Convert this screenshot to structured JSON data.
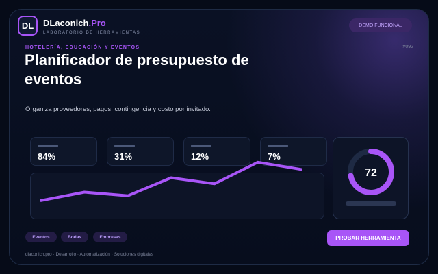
{
  "brand": {
    "logo_text": "DL",
    "name_main": "DLaconich",
    "name_accent": ".Pro",
    "subtitle": "LABORATORIO DE HERRAMIENTAS"
  },
  "header": {
    "badge": "DEMO FUNCIONAL"
  },
  "hero": {
    "category": "HOTELERÍA, EDUCACIÓN Y EVENTOS",
    "tool_id": "#092",
    "title": "Planificador de presupuesto de eventos",
    "description": "Organiza proveedores, pagos, contingencia y costo por invitado."
  },
  "stats": [
    "84%",
    "31%",
    "12%",
    "7%"
  ],
  "chart_data": {
    "type": "line",
    "values": [
      1.5,
      5.0,
      3.5,
      11.0,
      8.5,
      17.5,
      14.5
    ],
    "ylim": [
      0,
      20
    ],
    "color": "#a855f7",
    "grid": false,
    "legend": "none"
  },
  "gauge": {
    "value": "72",
    "fraction": 0.72,
    "color": "#a855f7",
    "track": "#1e2a44"
  },
  "tags": [
    "Eventos",
    "Bodas",
    "Empresas"
  ],
  "cta": "PROBAR HERRAMIENTA",
  "footer": "dlaconich.pro · Desarrollo · Automatización · Soluciones digitales",
  "colors": {
    "accent": "#a855f7",
    "background": "#060b18"
  }
}
